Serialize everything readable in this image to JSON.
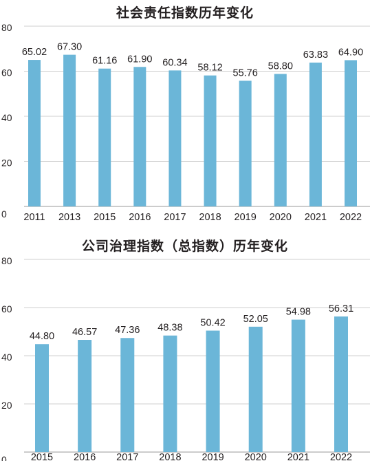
{
  "chart_data": [
    {
      "type": "bar",
      "title": "社会责任指数历年变化",
      "categories": [
        "2011",
        "2013",
        "2015",
        "2016",
        "2017",
        "2018",
        "2019",
        "2020",
        "2021",
        "2022"
      ],
      "values": [
        65.02,
        67.3,
        61.16,
        61.9,
        60.34,
        58.12,
        55.76,
        58.8,
        63.83,
        64.9
      ],
      "value_labels": [
        "65.02",
        "67.30",
        "61.16",
        "61.90",
        "60.34",
        "58.12",
        "55.76",
        "58.80",
        "63.83",
        "64.90"
      ],
      "yticks": [
        "0",
        "20",
        "40",
        "60",
        "80"
      ],
      "ylim": [
        0,
        80
      ],
      "grid": true,
      "bar_color": "#6bb6d8"
    },
    {
      "type": "bar",
      "title": "公司治理指数（总指数）历年变化",
      "categories": [
        "2015",
        "2016",
        "2017",
        "2018",
        "2019",
        "2020",
        "2021",
        "2022"
      ],
      "values": [
        44.8,
        46.57,
        47.36,
        48.38,
        50.42,
        52.05,
        54.98,
        56.31
      ],
      "value_labels": [
        "44.80",
        "46.57",
        "47.36",
        "48.38",
        "50.42",
        "52.05",
        "54.98",
        "56.31"
      ],
      "yticks": [
        "0",
        "20",
        "40",
        "60",
        "80"
      ],
      "ylim": [
        0,
        80
      ],
      "grid": true,
      "bar_color": "#6bb6d8"
    }
  ]
}
